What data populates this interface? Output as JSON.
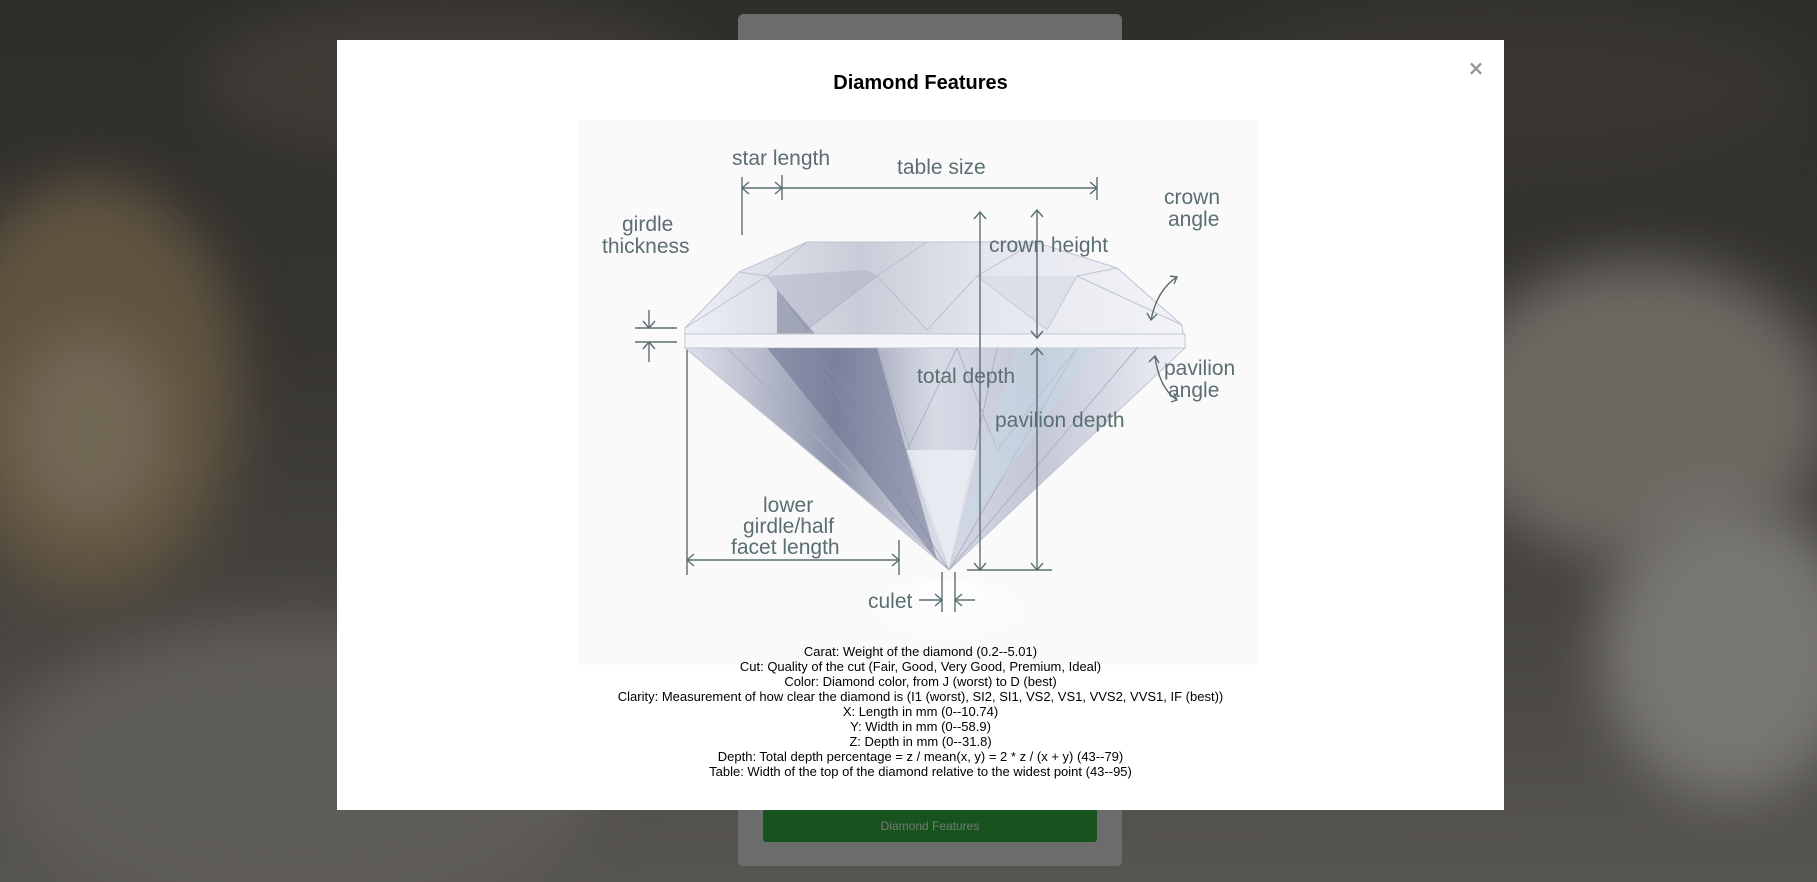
{
  "underlay": {
    "button_label": "Diamond Features"
  },
  "modal": {
    "title": "Diamond Features",
    "close_glyph": "×",
    "diagram_labels": {
      "star_length": "star length",
      "table_size": "table size",
      "girdle_thickness_1": "girdle",
      "girdle_thickness_2": "thickness",
      "crown_angle_1": "crown",
      "crown_angle_2": "angle",
      "crown_height": "crown height",
      "total_depth": "total depth",
      "pavilion_angle_1": "pavilion",
      "pavilion_angle_2": "angle",
      "pavilion_depth": "pavilion depth",
      "lower_girdle_1": "lower",
      "lower_girdle_2": "girdle/half",
      "lower_girdle_3": "facet length",
      "culet": "culet"
    },
    "descriptions": [
      "Carat: Weight of the diamond (0.2--5.01)",
      "Cut: Quality of the cut (Fair, Good, Very Good, Premium, Ideal)",
      "Color: Diamond color, from J (worst) to D (best)",
      "Clarity: Measurement of how clear the diamond is (I1 (worst), SI2, SI1, VS2, VS1, VVS2, VVS1, IF (best))",
      "X: Length in mm (0--10.74)",
      "Y: Width in mm (0--58.9)",
      "Z: Depth in mm (0--31.8)",
      "Depth: Total depth percentage = z / mean(x, y) = 2 * z / (x + y) (43--79)",
      "Table: Width of the top of the diamond relative to the widest point (43--95)"
    ]
  }
}
